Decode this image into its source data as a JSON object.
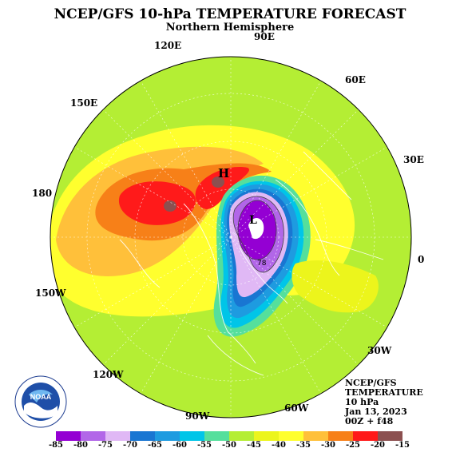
{
  "title": "NCEP/GFS 10-hPa TEMPERATURE FORECAST",
  "subtitle": "Northern Hemisphere",
  "longitude_labels": [
    "90E",
    "120E",
    "60E",
    "150E",
    "30E",
    "180",
    "0",
    "150W",
    "30W",
    "120W",
    "60W",
    "90W"
  ],
  "pressure_systems": [
    {
      "symbol": "H",
      "temperature_level": -25
    },
    {
      "symbol": "L",
      "temperature_level": -85
    }
  ],
  "contour_label": "78",
  "info": {
    "line1": "NCEP/GFS",
    "line2": "TEMPERATURE",
    "line3": "10 hPa",
    "line4": "Jan 13, 2023",
    "line5": "00Z + f48"
  },
  "logo_text": "NOAA",
  "colorbar": {
    "labels": [
      "-85",
      "-80",
      "-75",
      "-70",
      "-65",
      "-60",
      "-55",
      "-50",
      "-45",
      "-40",
      "-35",
      "-30",
      "-25",
      "-20",
      "-15"
    ],
    "colors": [
      "#9400d3",
      "#b266e8",
      "#e0b8f5",
      "#1976d2",
      "#1e9be0",
      "#00c5e8",
      "#55df9c",
      "#b4ee34",
      "#ecf51c",
      "#ffff2e",
      "#ffc03a",
      "#f78018",
      "#ff1a1a",
      "#8c5050"
    ]
  },
  "colors": {
    "background_field": "#b4ee34",
    "warm_center": "#ff1a1a",
    "cold_center": "#9400d3"
  }
}
